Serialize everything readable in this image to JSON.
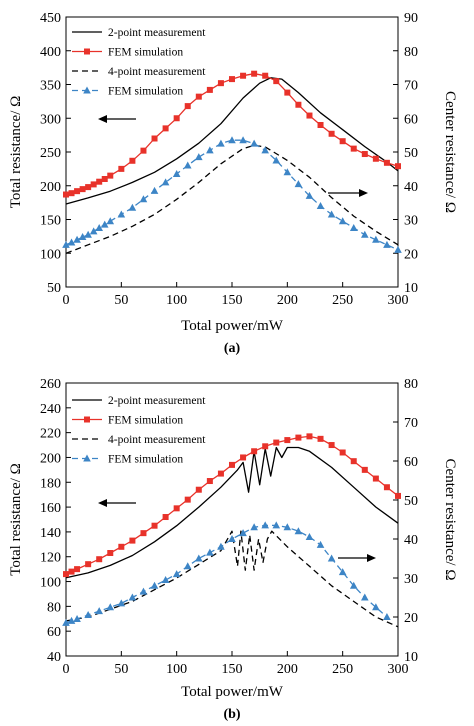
{
  "chart_data": [
    {
      "panel_label": "(a)",
      "type": "line",
      "xlabel": "Total power/mW",
      "ylabel_left": "Total resistance/ Ω",
      "ylabel_right": "Center resistance/ Ω",
      "xlim": [
        0,
        300
      ],
      "ylim_left": [
        50,
        450
      ],
      "ylim_right": [
        10,
        90
      ],
      "xticks": [
        "0",
        "50",
        "100",
        "150",
        "200",
        "250",
        "300"
      ],
      "yticks_left": [
        "50",
        "100",
        "150",
        "200",
        "250",
        "300",
        "350",
        "400",
        "450"
      ],
      "yticks_right": [
        "10",
        "20",
        "30",
        "40",
        "50",
        "60",
        "70",
        "80",
        "90"
      ],
      "grid": false,
      "legend_position": "top-left",
      "series": [
        {
          "name": "2-point measurement",
          "axis": "left",
          "color": "#000000",
          "style": "solid",
          "marker": "none",
          "x": [
            0,
            20,
            40,
            60,
            80,
            100,
            120,
            140,
            160,
            175,
            185,
            195,
            210,
            230,
            250,
            270,
            290,
            300
          ],
          "y": [
            173,
            182,
            192,
            205,
            220,
            240,
            263,
            292,
            330,
            352,
            360,
            358,
            338,
            308,
            283,
            258,
            235,
            222
          ]
        },
        {
          "name": "FEM simulation",
          "axis": "left",
          "color": "#e8322a",
          "style": "solid",
          "marker": "square",
          "x": [
            0,
            5,
            10,
            15,
            20,
            25,
            30,
            35,
            40,
            50,
            60,
            70,
            80,
            90,
            100,
            110,
            120,
            130,
            140,
            150,
            160,
            170,
            180,
            190,
            200,
            210,
            220,
            230,
            240,
            250,
            260,
            270,
            280,
            290,
            300
          ],
          "y": [
            187,
            189,
            192,
            195,
            198,
            202,
            206,
            210,
            215,
            225,
            237,
            252,
            270,
            285,
            300,
            318,
            332,
            342,
            352,
            358,
            363,
            366,
            363,
            355,
            338,
            320,
            304,
            290,
            277,
            266,
            255,
            247,
            240,
            234,
            229
          ]
        },
        {
          "name": "4-point measurement",
          "axis": "right",
          "color": "#000000",
          "style": "dashed",
          "marker": "none",
          "x": [
            0,
            20,
            40,
            60,
            80,
            100,
            120,
            140,
            160,
            170,
            180,
            200,
            220,
            240,
            260,
            280,
            300
          ],
          "y": [
            20,
            22.5,
            25,
            28,
            31.5,
            36,
            41,
            46.5,
            51,
            52,
            51.5,
            47.5,
            42.5,
            36.5,
            31,
            26.5,
            22.5
          ]
        },
        {
          "name": "FEM simulation",
          "axis": "right",
          "color": "#3d85c6",
          "style": "dashed",
          "marker": "triangle",
          "x": [
            0,
            5,
            10,
            15,
            20,
            25,
            30,
            35,
            40,
            50,
            60,
            70,
            80,
            90,
            100,
            110,
            120,
            130,
            140,
            150,
            160,
            170,
            180,
            190,
            200,
            210,
            220,
            230,
            240,
            250,
            260,
            270,
            280,
            290,
            300
          ],
          "y": [
            22.5,
            23.2,
            24,
            24.8,
            25.5,
            26.5,
            27.5,
            28.5,
            29.5,
            31.5,
            33.5,
            36,
            38.5,
            41,
            43.5,
            46,
            48.5,
            50.5,
            52.5,
            53.5,
            53.5,
            52.5,
            50.5,
            47.5,
            44,
            40.5,
            37,
            34,
            31.5,
            29.5,
            27.5,
            25.5,
            24,
            22.5,
            21
          ]
        }
      ],
      "annotations": [
        "arrow pointing left at left axis",
        "arrow pointing right at right axis"
      ]
    },
    {
      "panel_label": "(b)",
      "type": "line",
      "xlabel": "Total power/mW",
      "ylabel_left": "Total resistance/ Ω",
      "ylabel_right": "Center resistance/ Ω",
      "xlim": [
        0,
        300
      ],
      "ylim_left": [
        40,
        260
      ],
      "ylim_right": [
        10,
        80
      ],
      "xticks": [
        "0",
        "50",
        "100",
        "150",
        "200",
        "250",
        "300"
      ],
      "yticks_left": [
        "40",
        "60",
        "80",
        "100",
        "120",
        "140",
        "160",
        "180",
        "200",
        "220",
        "240",
        "260"
      ],
      "yticks_right": [
        "10",
        "20",
        "30",
        "40",
        "50",
        "60",
        "70",
        "80"
      ],
      "grid": false,
      "legend_position": "top-left",
      "series": [
        {
          "name": "2-point measurement",
          "axis": "left",
          "color": "#000000",
          "style": "solid",
          "marker": "none",
          "x": [
            0,
            20,
            40,
            60,
            80,
            100,
            120,
            140,
            155,
            160,
            165,
            170,
            175,
            180,
            185,
            190,
            195,
            200,
            210,
            220,
            240,
            260,
            280,
            300
          ],
          "y": [
            103,
            107,
            113,
            121,
            132,
            145,
            160,
            176,
            190,
            196,
            172,
            205,
            178,
            207,
            185,
            208,
            200,
            208,
            208,
            205,
            192,
            176,
            160,
            147
          ]
        },
        {
          "name": "FEM simulation",
          "axis": "left",
          "color": "#e8322a",
          "style": "solid",
          "marker": "square",
          "x": [
            0,
            5,
            10,
            20,
            30,
            40,
            50,
            60,
            70,
            80,
            90,
            100,
            110,
            120,
            130,
            140,
            150,
            160,
            170,
            180,
            190,
            200,
            210,
            220,
            230,
            240,
            250,
            260,
            270,
            280,
            290,
            300
          ],
          "y": [
            106,
            108,
            110,
            114,
            118,
            123,
            128,
            133,
            139,
            145,
            152,
            159,
            166,
            174,
            181,
            187,
            194,
            200,
            205,
            209,
            212,
            214,
            216,
            217,
            215,
            210,
            204,
            197,
            190,
            183,
            176,
            169
          ]
        },
        {
          "name": "4-point measurement",
          "axis": "right",
          "color": "#000000",
          "style": "dashed",
          "marker": "none",
          "x": [
            0,
            20,
            40,
            60,
            80,
            100,
            120,
            140,
            150,
            155,
            158,
            162,
            166,
            170,
            174,
            178,
            182,
            186,
            200,
            220,
            240,
            260,
            280,
            300
          ],
          "y": [
            19,
            20,
            22,
            24,
            27,
            30,
            33.5,
            37,
            42,
            33,
            42,
            32,
            41,
            32,
            40,
            34,
            40,
            42,
            38,
            33,
            28,
            24,
            20,
            17.5
          ]
        },
        {
          "name": "FEM simulation",
          "axis": "right",
          "color": "#3d85c6",
          "style": "dashed",
          "marker": "triangle",
          "x": [
            0,
            5,
            10,
            20,
            30,
            40,
            50,
            60,
            70,
            80,
            90,
            100,
            110,
            120,
            130,
            140,
            150,
            160,
            170,
            180,
            190,
            200,
            210,
            220,
            230,
            240,
            250,
            260,
            270,
            280,
            290
          ],
          "y": [
            18.5,
            19,
            19.5,
            20.5,
            21.5,
            22.5,
            23.5,
            25,
            26.5,
            28,
            29.5,
            31,
            33,
            35,
            36.5,
            38,
            40,
            41.5,
            43,
            43.5,
            43.5,
            43,
            42,
            40.5,
            38.5,
            35,
            31.5,
            28,
            25,
            22.5,
            20
          ]
        }
      ],
      "annotations": [
        "arrow pointing left at left axis",
        "arrow pointing right at right axis"
      ]
    }
  ]
}
